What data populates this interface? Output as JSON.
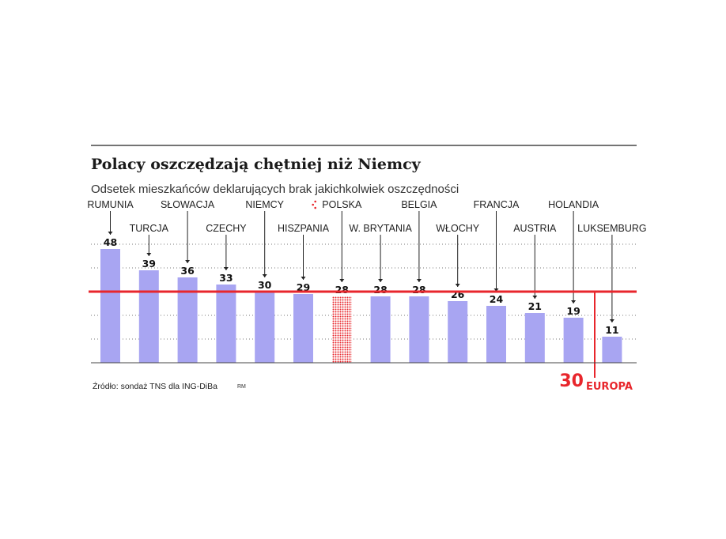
{
  "title": "Polacy oszczędzają chętniej niż Niemcy",
  "subtitle": "Odsetek mieszkańców deklarujących brak jakichkolwiek oszczędności",
  "source": "Źródło: sondaż TNS dla ING-DiBa",
  "author": "RM",
  "colors": {
    "bar": "#a8a5f2",
    "highlight": "#e8262c",
    "text": "#1a1a1a",
    "grid": "#7a7a7a"
  },
  "chart_data": {
    "type": "bar",
    "categories": [
      "RUMUNIA",
      "TURCJA",
      "SŁOWACJA",
      "CZECHY",
      "NIEMCY",
      "HISZPANIA",
      "POLSKA",
      "W. BRYTANIA",
      "BELGIA",
      "WŁOCHY",
      "FRANCJA",
      "AUSTRIA",
      "HOLANDIA",
      "LUKSEMBURG"
    ],
    "category_labels": [
      [
        "RUMUNIA"
      ],
      [
        "TURCJA"
      ],
      [
        "SŁOWACJA"
      ],
      [
        "CZECHY"
      ],
      [
        "NIEMCY"
      ],
      [
        "HISZPANIA"
      ],
      [
        "POLSKA"
      ],
      [
        "W. BRYTANIA"
      ],
      [
        "BELGIA"
      ],
      [
        "WŁOCHY"
      ],
      [
        "FRANCJA"
      ],
      [
        "AUSTRIA"
      ],
      [
        "HOLANDIA"
      ],
      [
        "LUKSEMBURG"
      ]
    ],
    "values": [
      48,
      39,
      36,
      33,
      30,
      29,
      28,
      28,
      28,
      26,
      24,
      21,
      19,
      11
    ],
    "highlighted": "POLSKA",
    "reference_line": {
      "value": 30,
      "label": "EUROPA"
    },
    "ylim": [
      0,
      50
    ],
    "grid": true,
    "xlabel": "",
    "ylabel": ""
  }
}
